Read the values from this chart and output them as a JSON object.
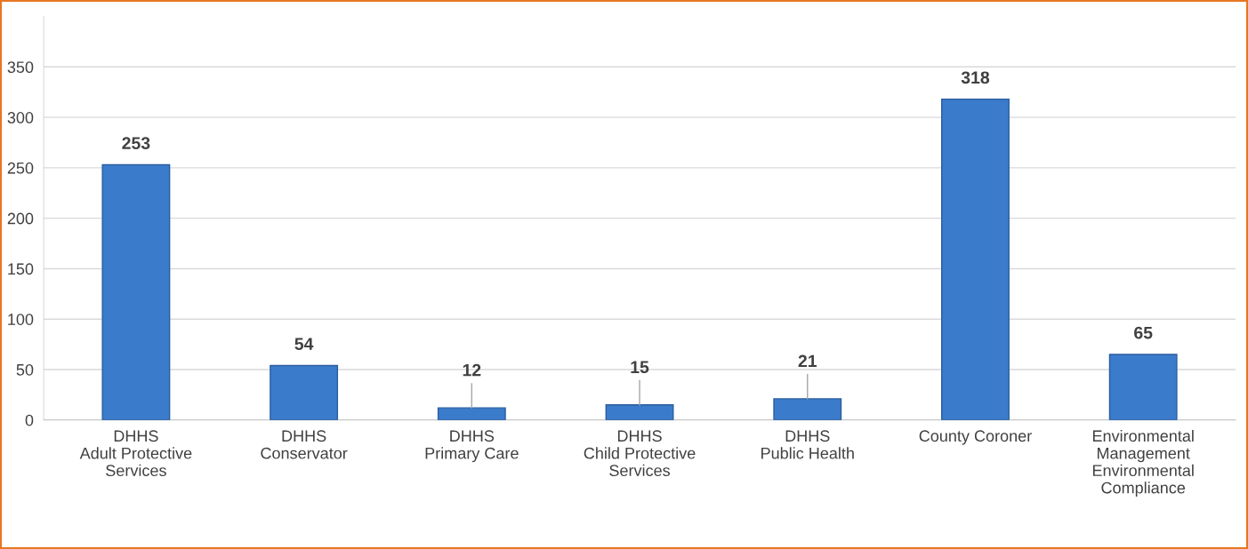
{
  "chart_data": {
    "type": "bar",
    "categories": [
      "DHHS\nAdult Protective\nServices",
      "DHHS\nConservator",
      "DHHS\nPrimary Care",
      "DHHS\nChild Protective\nServices",
      "DHHS\nPublic Health",
      "County Coroner",
      "Environmental\nManagement\nEnvironmental\nCompliance"
    ],
    "values": [
      253,
      54,
      12,
      15,
      21,
      318,
      65
    ],
    "color": "#3b7bcb",
    "ylim": [
      0,
      400
    ],
    "yticks": [
      0,
      50,
      100,
      150,
      200,
      250,
      300,
      350
    ],
    "grid": "y",
    "data_labels": true
  }
}
